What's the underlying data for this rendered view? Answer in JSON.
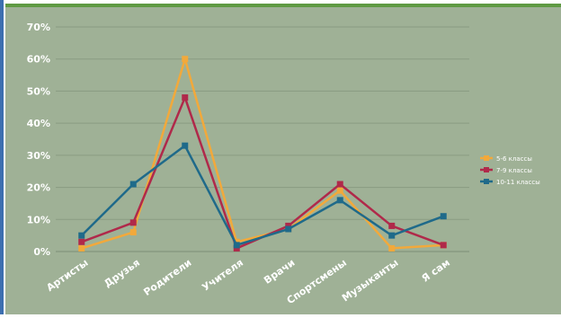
{
  "chart_data": {
    "type": "line",
    "title": "",
    "xlabel": "",
    "ylabel": "",
    "categories": [
      "Артисты",
      "Друзья",
      "Родители",
      "Учителя",
      "Врачи",
      "Спортсмены",
      "Музыканты",
      "Я сам"
    ],
    "y_tick_labels": [
      "0%",
      "10%",
      "20%",
      "30%",
      "40%",
      "50%",
      "60%",
      "70%"
    ],
    "ylim": [
      0,
      70
    ],
    "y_unit": "%",
    "grid": true,
    "legend_position": "right",
    "series": [
      {
        "name": "5-6 классы",
        "color": "#f2a93b",
        "values": [
          1,
          6,
          60,
          3,
          7,
          19,
          1,
          2
        ]
      },
      {
        "name": "7-9 классы",
        "color": "#b0294a",
        "values": [
          3,
          9,
          48,
          1,
          8,
          21,
          8,
          2
        ]
      },
      {
        "name": "10-11 классы",
        "color": "#1f6a8a",
        "values": [
          5,
          21,
          33,
          2,
          7,
          16,
          5,
          11
        ]
      }
    ]
  }
}
